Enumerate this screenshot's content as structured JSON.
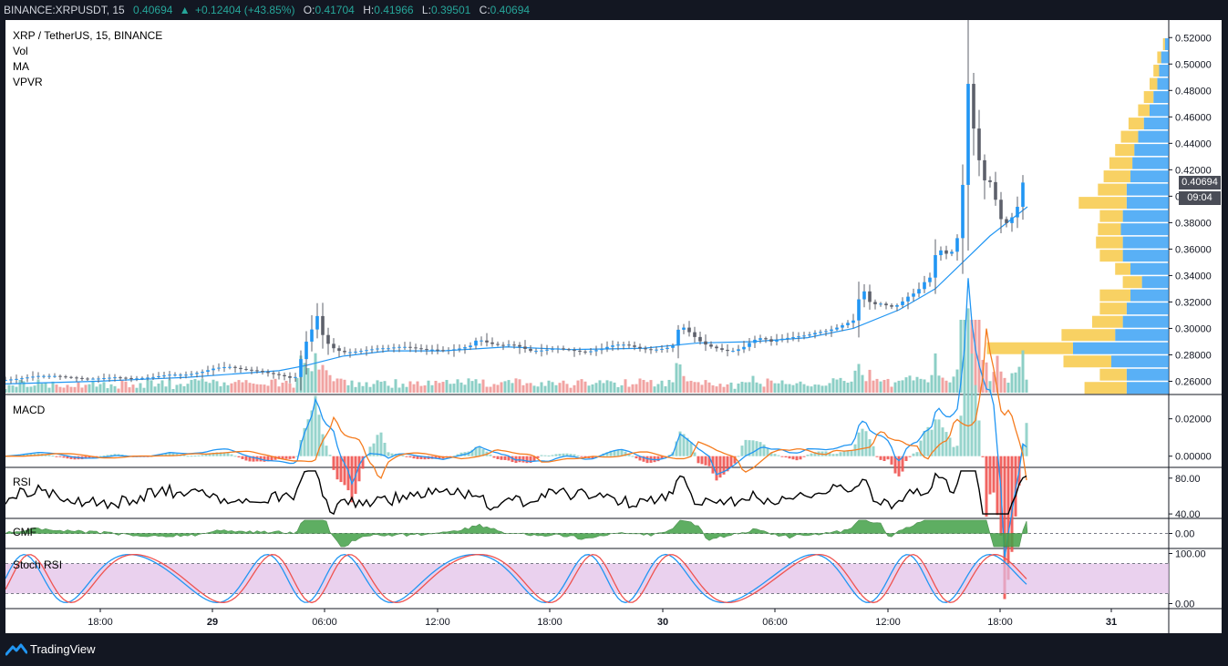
{
  "header": {
    "symbol": "BINANCE:XRPUSDT, 15",
    "last": "0.40694",
    "change_arrow": "▲",
    "change": "+0.12404 (+43.85%)",
    "o_label": "O:",
    "o": "0.41704",
    "h_label": "H:",
    "h": "0.41966",
    "l_label": "L:",
    "l": "0.39501",
    "c_label": "C:",
    "c": "0.40694"
  },
  "legend": {
    "title": "XRP / TetherUS, 15, BINANCE",
    "items": [
      "Vol",
      "MA",
      "VPVR"
    ]
  },
  "price_tags": {
    "last": "0.40694",
    "countdown": "09:04"
  },
  "footer": {
    "brand": "TradingView"
  },
  "colors": {
    "up": "#26a69a",
    "down": "#ef5350",
    "candle_body": "#5d606b",
    "candle_up_body": "#2196f3",
    "ma": "#2196f3",
    "macd": "#2196f3",
    "signal": "#f57c1f",
    "rsi": "#000000",
    "cmf": "#43a047",
    "stoch_k": "#2196f3",
    "stoch_d": "#ef5350",
    "stoch_band": "#e1bee7"
  },
  "chart_data": [
    {
      "type": "candlestick",
      "title": "XRP / TetherUS, 15, BINANCE",
      "ylim": [
        0.25,
        0.525
      ],
      "y_ticks": [
        "0.52000",
        "0.50000",
        "0.48000",
        "0.46000",
        "0.44000",
        "0.42000",
        "0.40000",
        "0.38000",
        "0.36000",
        "0.34000",
        "0.32000",
        "0.30000",
        "0.28000",
        "0.26000"
      ],
      "x_ticks": [
        "18:00",
        "29",
        "06:00",
        "12:00",
        "18:00",
        "30",
        "06:00",
        "12:00",
        "18:00",
        "31"
      ],
      "close_path": [
        [
          0,
          0.261
        ],
        [
          15,
          0.262
        ],
        [
          35,
          0.264
        ],
        [
          55,
          0.264
        ],
        [
          70,
          0.263
        ],
        [
          85,
          0.262
        ],
        [
          100,
          0.262
        ],
        [
          120,
          0.263
        ],
        [
          140,
          0.262
        ],
        [
          160,
          0.263
        ],
        [
          180,
          0.265
        ],
        [
          200,
          0.265
        ],
        [
          215,
          0.267
        ],
        [
          230,
          0.27
        ],
        [
          245,
          0.271
        ],
        [
          260,
          0.269
        ],
        [
          275,
          0.268
        ],
        [
          290,
          0.266
        ],
        [
          305,
          0.264
        ],
        [
          315,
          0.262
        ],
        [
          320,
          0.264
        ],
        [
          325,
          0.28
        ],
        [
          330,
          0.29
        ],
        [
          335,
          0.296
        ],
        [
          340,
          0.312
        ],
        [
          343,
          0.308
        ],
        [
          346,
          0.299
        ],
        [
          350,
          0.291
        ],
        [
          356,
          0.287
        ],
        [
          362,
          0.284
        ],
        [
          370,
          0.282
        ],
        [
          380,
          0.282
        ],
        [
          390,
          0.283
        ],
        [
          400,
          0.284
        ],
        [
          410,
          0.285
        ],
        [
          420,
          0.285
        ],
        [
          430,
          0.286
        ],
        [
          440,
          0.286
        ],
        [
          450,
          0.285
        ],
        [
          460,
          0.284
        ],
        [
          470,
          0.284
        ],
        [
          480,
          0.283
        ],
        [
          490,
          0.284
        ],
        [
          500,
          0.285
        ],
        [
          510,
          0.287
        ],
        [
          518,
          0.292
        ],
        [
          525,
          0.29
        ],
        [
          535,
          0.288
        ],
        [
          545,
          0.287
        ],
        [
          555,
          0.288
        ],
        [
          565,
          0.286
        ],
        [
          575,
          0.283
        ],
        [
          585,
          0.283
        ],
        [
          595,
          0.284
        ],
        [
          605,
          0.285
        ],
        [
          615,
          0.284
        ],
        [
          625,
          0.283
        ],
        [
          635,
          0.282
        ],
        [
          645,
          0.283
        ],
        [
          655,
          0.285
        ],
        [
          665,
          0.287
        ],
        [
          675,
          0.288
        ],
        [
          685,
          0.287
        ],
        [
          695,
          0.285
        ],
        [
          705,
          0.284
        ],
        [
          715,
          0.284
        ],
        [
          725,
          0.285
        ],
        [
          732,
          0.287
        ],
        [
          740,
          0.303
        ],
        [
          745,
          0.3
        ],
        [
          752,
          0.296
        ],
        [
          760,
          0.291
        ],
        [
          770,
          0.287
        ],
        [
          780,
          0.285
        ],
        [
          790,
          0.283
        ],
        [
          800,
          0.283
        ],
        [
          810,
          0.286
        ],
        [
          820,
          0.291
        ],
        [
          830,
          0.293
        ],
        [
          840,
          0.29
        ],
        [
          850,
          0.292
        ],
        [
          860,
          0.293
        ],
        [
          870,
          0.294
        ],
        [
          880,
          0.295
        ],
        [
          890,
          0.297
        ],
        [
          900,
          0.298
        ],
        [
          910,
          0.3
        ],
        [
          920,
          0.303
        ],
        [
          930,
          0.306
        ],
        [
          936,
          0.322
        ],
        [
          942,
          0.328
        ],
        [
          948,
          0.32
        ],
        [
          955,
          0.318
        ],
        [
          962,
          0.319
        ],
        [
          970,
          0.316
        ],
        [
          980,
          0.318
        ],
        [
          990,
          0.324
        ],
        [
          1000,
          0.328
        ],
        [
          1008,
          0.335
        ],
        [
          1015,
          0.339
        ],
        [
          1022,
          0.362
        ],
        [
          1030,
          0.356
        ],
        [
          1038,
          0.358
        ],
        [
          1045,
          0.37
        ],
        [
          1052,
          0.424
        ],
        [
          1056,
          0.485
        ],
        [
          1060,
          0.46
        ],
        [
          1065,
          0.438
        ],
        [
          1070,
          0.42
        ],
        [
          1076,
          0.408
        ],
        [
          1082,
          0.412
        ],
        [
          1088,
          0.39
        ],
        [
          1094,
          0.379
        ],
        [
          1100,
          0.38
        ],
        [
          1106,
          0.386
        ],
        [
          1112,
          0.395
        ],
        [
          1118,
          0.418
        ],
        [
          1121,
          0.407
        ]
      ],
      "ma_path": [
        [
          0,
          0.258
        ],
        [
          100,
          0.26
        ],
        [
          200,
          0.263
        ],
        [
          300,
          0.268
        ],
        [
          330,
          0.272
        ],
        [
          370,
          0.279
        ],
        [
          420,
          0.283
        ],
        [
          480,
          0.283
        ],
        [
          550,
          0.286
        ],
        [
          620,
          0.284
        ],
        [
          700,
          0.285
        ],
        [
          760,
          0.289
        ],
        [
          820,
          0.29
        ],
        [
          880,
          0.293
        ],
        [
          930,
          0.3
        ],
        [
          980,
          0.314
        ],
        [
          1020,
          0.33
        ],
        [
          1050,
          0.35
        ],
        [
          1080,
          0.37
        ],
        [
          1121,
          0.392
        ]
      ],
      "volume_scale": [
        0,
        60
      ],
      "volume_profile": {
        "price_rows": [
          0.515,
          0.505,
          0.495,
          0.485,
          0.475,
          0.465,
          0.455,
          0.445,
          0.435,
          0.425,
          0.415,
          0.405,
          0.395,
          0.385,
          0.375,
          0.365,
          0.355,
          0.345,
          0.335,
          0.325,
          0.315,
          0.305,
          0.295,
          0.285,
          0.275,
          0.265,
          0.255
        ],
        "up": [
          2,
          4,
          5,
          6,
          8,
          10,
          13,
          16,
          18,
          19,
          20,
          22,
          22,
          24,
          25,
          24,
          24,
          20,
          14,
          20,
          22,
          24,
          28,
          50,
          30,
          22,
          22
        ],
        "down": [
          1,
          2,
          3,
          4,
          5,
          6,
          8,
          9,
          10,
          12,
          14,
          15,
          25,
          12,
          12,
          14,
          12,
          8,
          10,
          16,
          14,
          16,
          28,
          45,
          25,
          14,
          22
        ]
      }
    },
    {
      "type": "line",
      "name": "MACD",
      "ylim": [
        -0.006,
        0.033
      ],
      "y_ticks": [
        "0.02000",
        "0.00000"
      ]
    },
    {
      "type": "line",
      "name": "RSI",
      "ylim": [
        35,
        92
      ],
      "y_ticks": [
        "80.00",
        "40.00"
      ]
    },
    {
      "type": "area",
      "name": "CMF",
      "ylim": [
        -0.25,
        0.25
      ],
      "y_ticks": [
        "0.00"
      ]
    },
    {
      "type": "line",
      "name": "Stoch RSI",
      "ylim": [
        -10,
        110
      ],
      "y_ticks": [
        "100.00",
        "0.00"
      ],
      "band": [
        20,
        80
      ]
    }
  ]
}
